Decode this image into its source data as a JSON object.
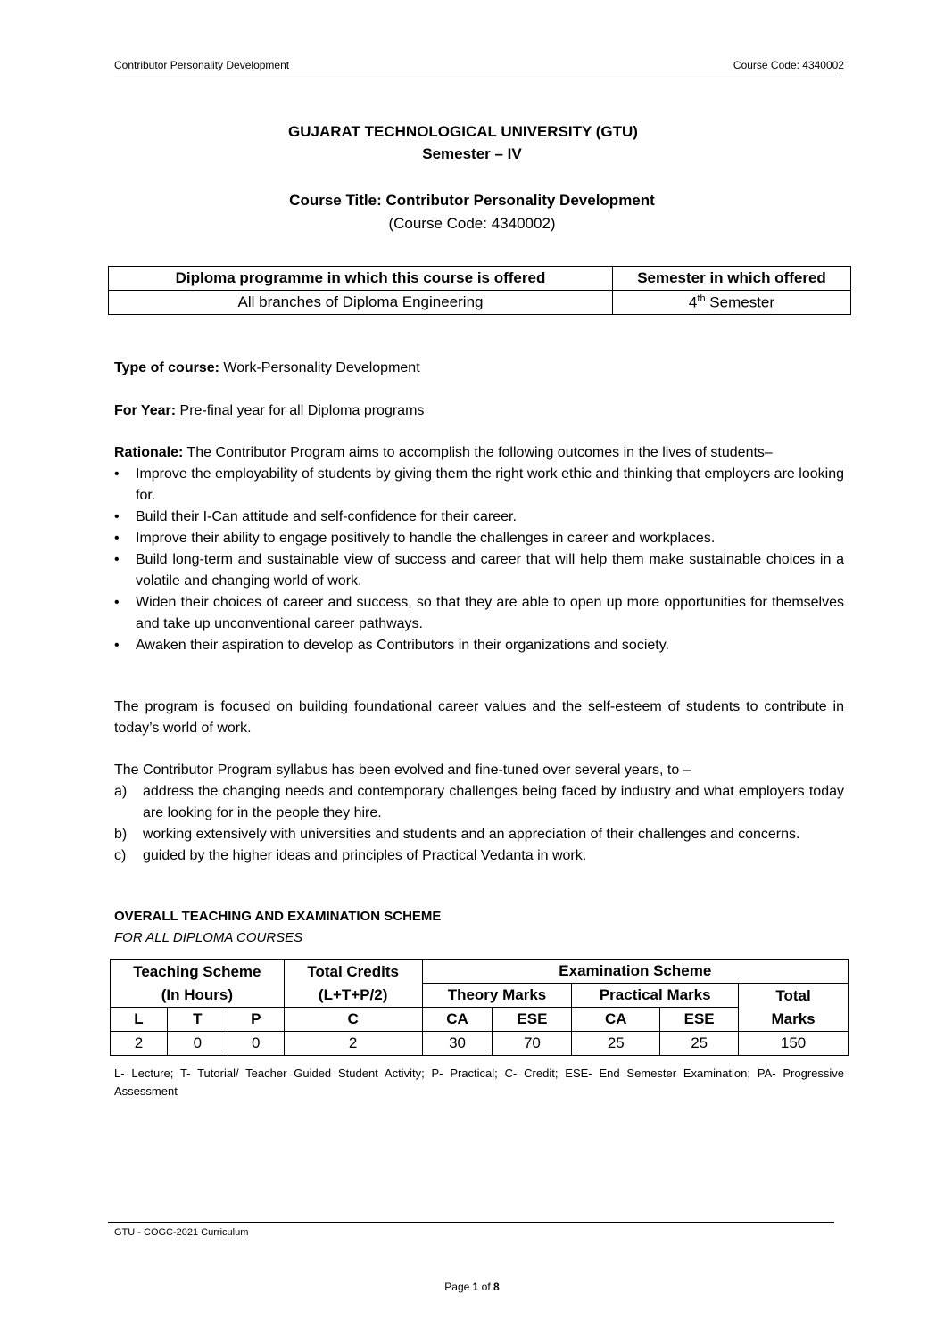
{
  "header": {
    "left": "Contributor Personality Development",
    "right": "Course Code: 4340002"
  },
  "title": {
    "university": "GUJARAT TECHNOLOGICAL UNIVERSITY (GTU)",
    "semester": "Semester – IV",
    "course_title": "Course Title: Contributor Personality Development",
    "course_code": "(Course Code: 4340002)"
  },
  "offer_table": {
    "headers": [
      "Diploma programme in which this course is offered",
      "Semester in which offered"
    ],
    "row": {
      "programme": "All branches of Diploma Engineering",
      "sem_num": "4",
      "sem_sup": "th",
      "sem_text": " Semester"
    }
  },
  "type": {
    "label": "Type of course:",
    "value": " Work-Personality Development"
  },
  "year": {
    "label": "For Year:",
    "value": " Pre-final year for all Diploma programs"
  },
  "rationale": {
    "label": "Rationale:",
    "intro": " The Contributor Program aims to accomplish the following outcomes in the lives of students–",
    "bullets": [
      "Improve the employability of students by giving them the right work ethic and thinking that employers are looking for.",
      "Build their I-Can attitude and self-confidence for their career.",
      "Improve their ability to engage positively to handle the challenges in career and workplaces.",
      "Build long-term and sustainable view of success and career that will help them make sustainable choices in a volatile and changing world of work.",
      "Widen their choices of career and success, so that they are able to open up more opportunities for themselves and take up unconventional career pathways.",
      "Awaken their aspiration to develop as Contributors in their organizations and society."
    ]
  },
  "program_para": "The program is focused on building foundational career values and the self-esteem of students to contribute in today’s world of work.",
  "syllabus": {
    "intro": "The Contributor Program syllabus has been evolved and fine-tuned over several years, to –",
    "items": [
      {
        "mark": "a)",
        "text": "address the changing needs and contemporary challenges being faced by industry and what employers today are looking for in the people they hire."
      },
      {
        "mark": "b)",
        "text": "working extensively with universities and students and an appreciation of their challenges and concerns."
      },
      {
        "mark": "c)",
        "text": "guided by the higher ideas and principles of Practical Vedanta in work."
      }
    ]
  },
  "scheme": {
    "heading": "OVERALL TEACHING AND EXAMINATION SCHEME",
    "subheading": "FOR ALL DIPLOMA COURSES",
    "teaching": "Teaching Scheme",
    "in_hours": "(In Hours)",
    "credits": "Total Credits",
    "credits_formula": "(L+T+P/2)",
    "exam": "Examination Scheme",
    "theory": "Theory Marks",
    "practical": "Practical Marks",
    "total": "Total",
    "marks": "Marks",
    "cols": [
      "L",
      "T",
      "P",
      "C",
      "CA",
      "ESE",
      "CA",
      "ESE"
    ],
    "values": [
      "2",
      "0",
      "0",
      "2",
      "30",
      "70",
      "25",
      "25",
      "150"
    ],
    "note": "L- Lecture; T- Tutorial/ Teacher Guided Student Activity; P- Practical; C- Credit; ESE- End Semester Examination; PA- Progressive Assessment"
  },
  "footer": {
    "curriculum": "GTU - COGC-2021 Curriculum",
    "page_prefix": "Page ",
    "page_num": "1",
    "page_of": " of ",
    "page_total": "8"
  }
}
